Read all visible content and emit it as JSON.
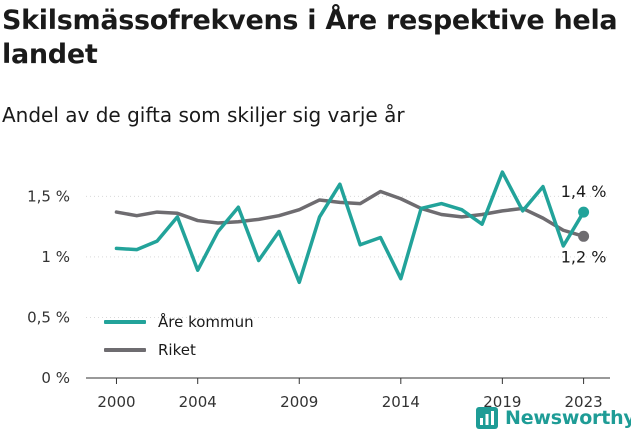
{
  "header": {
    "title": "Skilsmässofrekvens i Åre respektive hela landet",
    "subtitle": "Andel av de gifta som skiljer sig varje år"
  },
  "logo": {
    "text": "Newsworthy",
    "icon": "chart-logo-icon"
  },
  "colors": {
    "are": "#22a39a",
    "riket": "#6e6c70",
    "grid": "#d9d9d9",
    "logo": "#1e9c96"
  },
  "chart_data": {
    "type": "line",
    "title": "Skilsmässofrekvens i Åre respektive hela landet",
    "subtitle": "Andel av de gifta som skiljer sig varje år",
    "x": [
      2000,
      2001,
      2002,
      2003,
      2004,
      2005,
      2006,
      2007,
      2008,
      2009,
      2010,
      2011,
      2012,
      2013,
      2014,
      2015,
      2016,
      2017,
      2018,
      2019,
      2020,
      2021,
      2022,
      2023
    ],
    "x_ticks": [
      "2000",
      "2004",
      "2009",
      "2014",
      "2019",
      "2023"
    ],
    "y_ticks": [
      "0 %",
      "0,5 %",
      "1 %",
      "1,5 %"
    ],
    "y_tick_values": [
      0,
      0.5,
      1,
      1.5
    ],
    "ylim": [
      0,
      1.8
    ],
    "grid": "horizontal",
    "legend_position": "bottom-left",
    "series": [
      {
        "name": "Åre kommun",
        "color": "#22a39a",
        "values": [
          1.07,
          1.06,
          1.13,
          1.33,
          0.89,
          1.21,
          1.41,
          0.97,
          1.21,
          0.79,
          1.33,
          1.6,
          1.1,
          1.16,
          0.82,
          1.4,
          1.44,
          1.39,
          1.27,
          1.7,
          1.38,
          1.58,
          1.09,
          1.37
        ],
        "end_label": "1,4 %"
      },
      {
        "name": "Riket",
        "color": "#6e6c70",
        "values": [
          1.37,
          1.34,
          1.37,
          1.36,
          1.3,
          1.28,
          1.29,
          1.31,
          1.34,
          1.39,
          1.47,
          1.45,
          1.44,
          1.54,
          1.48,
          1.4,
          1.35,
          1.33,
          1.35,
          1.38,
          1.4,
          1.32,
          1.22,
          1.17
        ],
        "end_label": "1,2 %"
      }
    ]
  }
}
